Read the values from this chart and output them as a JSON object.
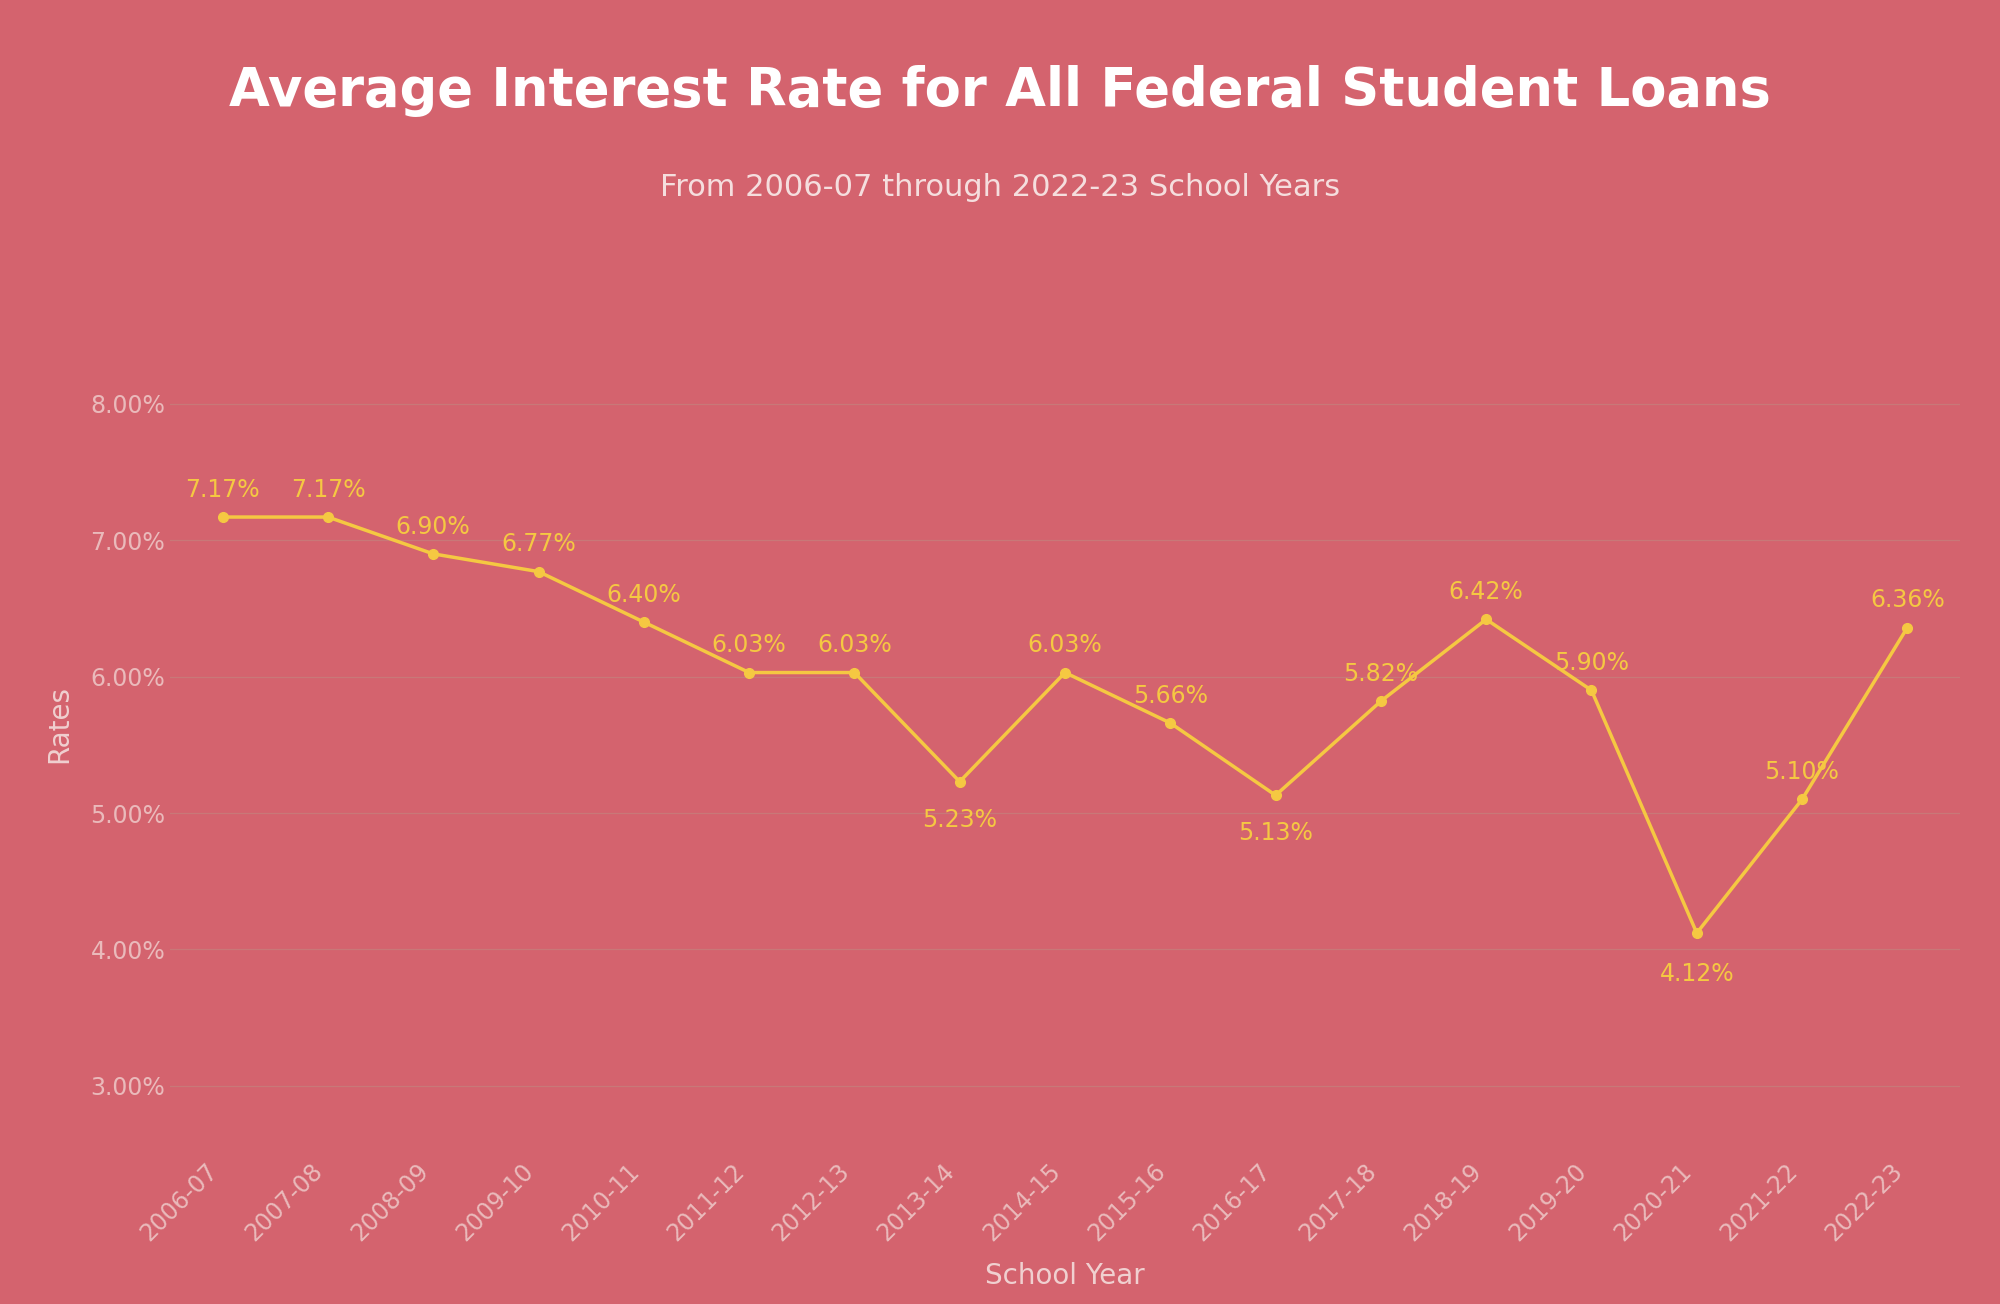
{
  "title": "Average Interest Rate for All Federal Student Loans",
  "subtitle": "From 2006-07 through 2022-23 School Years",
  "xlabel": "School Year",
  "ylabel": "Rates",
  "years": [
    "2006-07",
    "2007-08",
    "2008-09",
    "2009-10",
    "2010-11",
    "2011-12",
    "2012-13",
    "2013-14",
    "2014-15",
    "2015-16",
    "2016-17",
    "2017-18",
    "2018-19",
    "2019-20",
    "2020-21",
    "2021-22",
    "2022-23"
  ],
  "values": [
    7.17,
    7.17,
    6.9,
    6.77,
    6.4,
    6.03,
    6.03,
    5.23,
    6.03,
    5.66,
    5.13,
    5.82,
    6.42,
    5.9,
    4.12,
    5.1,
    6.36
  ],
  "labels": [
    "7.17%",
    "7.17%",
    "6.90%",
    "6.77%",
    "6.40%",
    "6.03%",
    "6.03%",
    "5.23%",
    "6.03%",
    "5.66%",
    "5.13%",
    "5.82%",
    "6.42%",
    "5.90%",
    "4.12%",
    "5.10%",
    "6.36%"
  ],
  "bg_header": "#e03050",
  "bg_chart": "#d4636e",
  "separator_color": "#7a0040",
  "line_color": "#f5c842",
  "marker_color": "#f5c842",
  "label_color": "#f5c842",
  "tick_color": "#eababb",
  "grid_color": "#c87878",
  "title_color": "#ffffff",
  "subtitle_color": "#f5dede",
  "axis_label_color": "#f0d0d0",
  "ytick_labels": [
    "3.00%",
    "4.00%",
    "5.00%",
    "6.00%",
    "7.00%",
    "8.00%"
  ],
  "ytick_values": [
    3.0,
    4.0,
    5.0,
    6.0,
    7.0,
    8.0
  ],
  "ylim": [
    2.5,
    8.8
  ],
  "title_fontsize": 38,
  "subtitle_fontsize": 22,
  "label_fontsize": 17,
  "tick_fontsize": 17,
  "axis_label_fontsize": 20,
  "label_offsets_y": [
    0.2,
    0.2,
    0.2,
    0.2,
    0.2,
    0.2,
    0.2,
    -0.28,
    0.2,
    0.2,
    -0.28,
    0.2,
    0.2,
    0.2,
    -0.3,
    0.2,
    0.2
  ]
}
